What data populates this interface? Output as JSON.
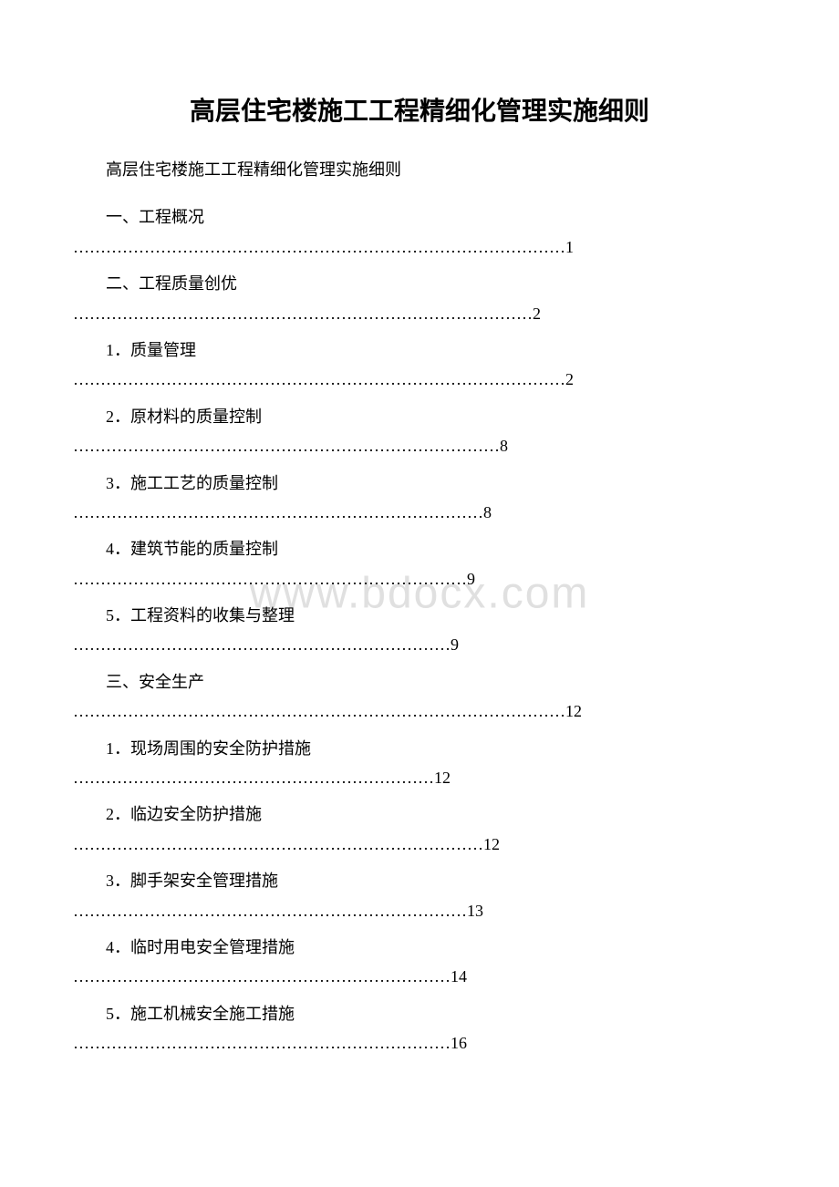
{
  "title": "高层住宅楼施工工程精细化管理实施细则",
  "subtitle": "高层住宅楼施工工程精细化管理实施细则",
  "watermark": "www.bdocx.com",
  "toc": [
    {
      "heading": "一、工程概况",
      "dots": "………………………………………………………………………………1"
    },
    {
      "heading": "二、工程质量创优",
      "dots": "…………………………………………………………………………2"
    },
    {
      "heading": "1．质量管理",
      "dots": "………………………………………………………………………………2"
    },
    {
      "heading": "2．原材料的质量控制",
      "dots": "……………………………………………………………………8"
    },
    {
      "heading": "3．施工工艺的质量控制",
      "dots": "…………………………………………………………………8"
    },
    {
      "heading": "4．建筑节能的质量控制",
      "dots": "………………………………………………………………9"
    },
    {
      "heading": "5．工程资料的收集与整理",
      "dots": "……………………………………………………………9"
    },
    {
      "heading": "三、安全生产",
      "dots": "………………………………………………………………………………12"
    },
    {
      "heading": "1．现场周围的安全防护措施",
      "dots": "…………………………………………………………12"
    },
    {
      "heading": "2．临边安全防护措施",
      "dots": "…………………………………………………………………12"
    },
    {
      "heading": "3．脚手架安全管理措施",
      "dots": "………………………………………………………………13"
    },
    {
      "heading": "4．临时用电安全管理措施",
      "dots": "……………………………………………………………14"
    },
    {
      "heading": "5．施工机械安全施工措施",
      "dots": "……………………………………………………………16"
    }
  ]
}
